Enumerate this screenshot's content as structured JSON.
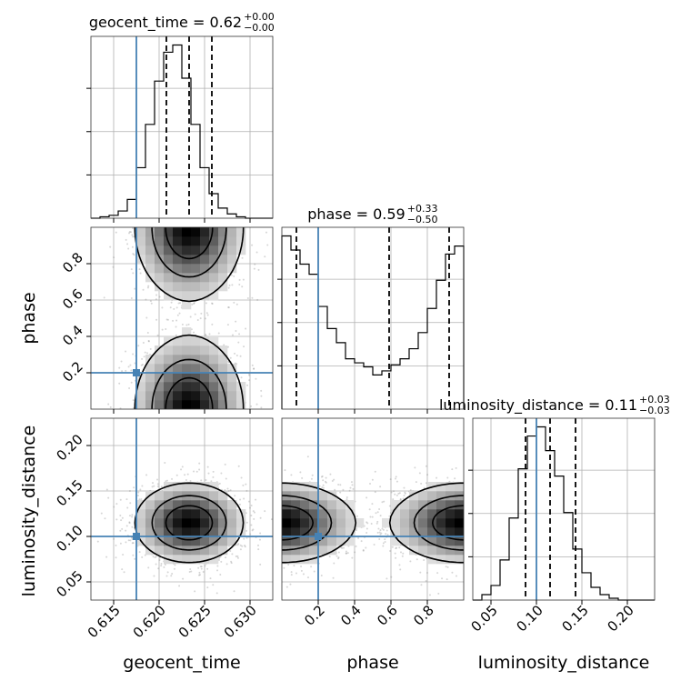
{
  "chart_data": {
    "type": "corner",
    "truth_color": "#4682b4",
    "parameters": [
      {
        "name": "geocent_time",
        "axis_label": "geocent_time",
        "title": {
          "main": "geocent_time = 0.62",
          "plus": "+0.00",
          "minus": "−0.00"
        },
        "range": [
          0.6125,
          0.6325
        ],
        "ticks": [
          0.615,
          0.62,
          0.625,
          0.63
        ],
        "tick_labels": [
          "0.615",
          "0.620",
          "0.625",
          "0.630"
        ],
        "truth": 0.6175,
        "quantiles": [
          0.6208,
          0.6233,
          0.6258
        ],
        "hist": {
          "edges_start": 0.6125,
          "bin_width": 0.001,
          "counts": [
            0,
            1,
            2,
            5,
            13,
            35,
            65,
            95,
            115,
            120,
            97,
            65,
            35,
            17,
            7,
            3,
            1,
            0,
            0,
            0
          ]
        }
      },
      {
        "name": "phase",
        "axis_label": "phase",
        "title": {
          "main": "phase = 0.59",
          "plus": "+0.33",
          "minus": "−0.50"
        },
        "range": [
          0.0,
          1.0
        ],
        "ticks": [
          0.2,
          0.4,
          0.6,
          0.8
        ],
        "tick_labels": [
          "0.2",
          "0.4",
          "0.6",
          "0.8"
        ],
        "truth": 0.2,
        "quantiles": [
          0.08,
          0.59,
          0.92
        ],
        "hist": {
          "edges_start": 0.0,
          "bin_width": 0.05,
          "counts": [
            86,
            79,
            72,
            67,
            51,
            40,
            33,
            25,
            23,
            21,
            17,
            19,
            22,
            25,
            30,
            38,
            50,
            64,
            77,
            81
          ]
        }
      },
      {
        "name": "luminosity_distance",
        "axis_label": "luminosity_distance",
        "title": {
          "main": "luminosity_distance = 0.11",
          "plus": "+0.03",
          "minus": "−0.03"
        },
        "range": [
          0.03,
          0.23
        ],
        "ticks": [
          0.05,
          0.1,
          0.15,
          0.2
        ],
        "tick_labels": [
          "0.05",
          "0.10",
          "0.15",
          "0.20"
        ],
        "truth": 0.1,
        "quantiles": [
          0.088,
          0.115,
          0.143
        ],
        "hist": {
          "edges_start": 0.03,
          "bin_width": 0.01,
          "counts": [
            0,
            3,
            8,
            22,
            45,
            72,
            90,
            95,
            82,
            68,
            48,
            28,
            15,
            7,
            3,
            1,
            0,
            0,
            0,
            0
          ]
        }
      }
    ],
    "scatter_2d": [
      {
        "x": "geocent_time",
        "y": "phase",
        "truth": [
          0.6175,
          0.2
        ]
      },
      {
        "x": "geocent_time",
        "y": "luminosity_distance",
        "truth": [
          0.6175,
          0.1
        ]
      },
      {
        "x": "phase",
        "y": "luminosity_distance",
        "truth": [
          0.2,
          0.1
        ]
      }
    ]
  }
}
